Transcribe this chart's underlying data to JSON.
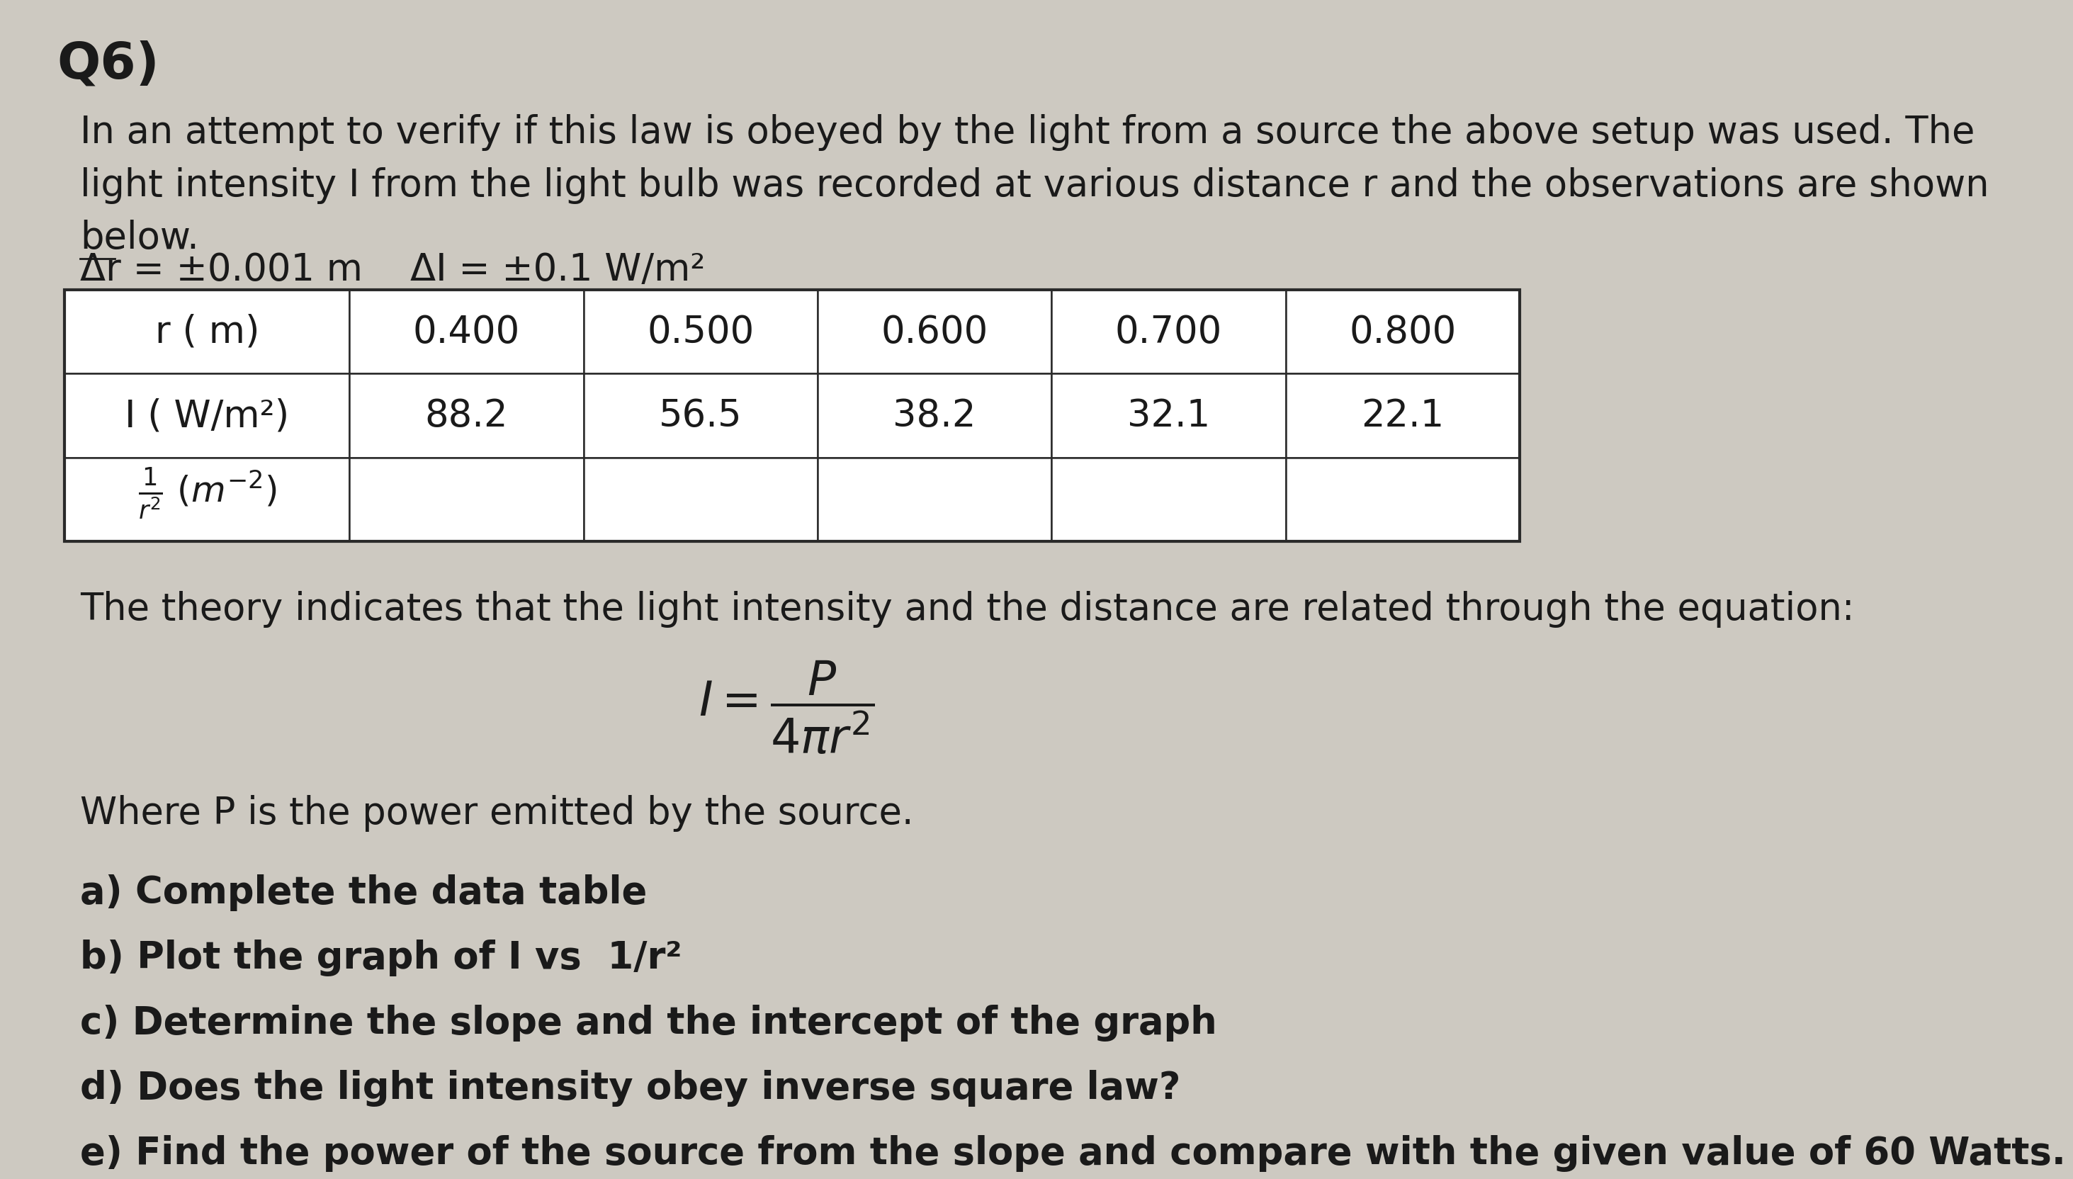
{
  "background_color": "#cdc9c1",
  "title": "Q6)",
  "title_fontsize": 52,
  "intro_text": "In an attempt to verify if this law is obeyed by the light from a source the above setup was used. The\nlight intensity I from the light bulb was recorded at various distance r and the observations are shown\nbelow.",
  "table_headers": [
    "r ( m)",
    "0.400",
    "0.500",
    "0.600",
    "0.700",
    "0.800"
  ],
  "table_row1_label": "I ( W/m²)",
  "table_row1_values": [
    "88.2",
    "56.5",
    "38.2",
    "32.1",
    "22.1"
  ],
  "theory_text": "The theory indicates that the light intensity and the distance are related through the equation:",
  "where_text": "Where P is the power emitted by the source.",
  "questions": [
    "a) Complete the data table",
    "b) Plot the graph of I vs  1/r²",
    "c) Determine the slope and the intercept of the graph",
    "d) Does the light intensity obey inverse square law?",
    "e) Find the power of the source from the slope and compare with the given value of 60 Watts."
  ],
  "text_color": "#1a1a1a",
  "table_border_color": "#2a2a2a",
  "font_size_body": 38,
  "font_size_table": 38,
  "font_size_title": 52,
  "font_size_eq": 44
}
